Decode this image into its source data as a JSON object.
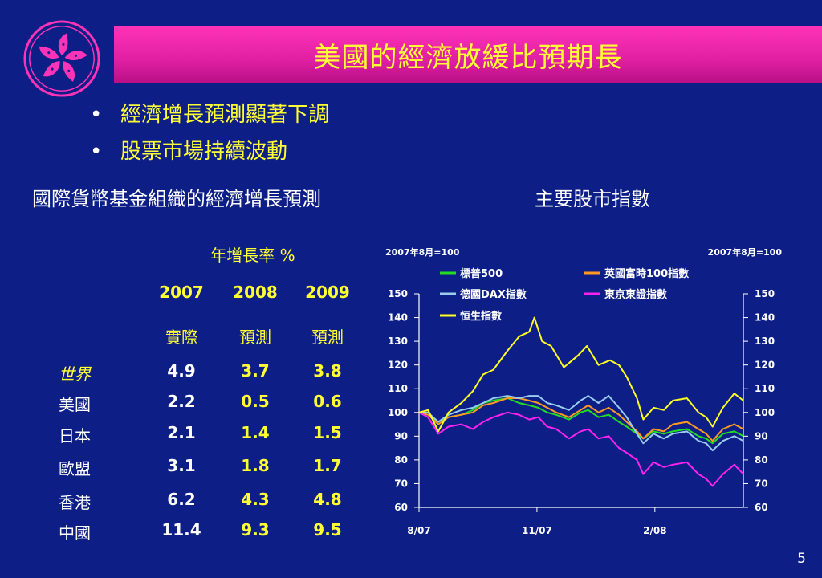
{
  "title": "美國的經濟放緩比預期長",
  "bullets": [
    "經濟增長預測顯著下調",
    "股票市場持續波動"
  ],
  "imf_table": {
    "heading": "國際貨幣基金組織的經濟增長預測",
    "unit_label": "年增長率 %",
    "years": [
      "2007",
      "2008",
      "2009"
    ],
    "types": [
      "實際",
      "預測",
      "預測"
    ],
    "rows": [
      {
        "region": "世界",
        "values": [
          "4.9",
          "3.7",
          "3.8"
        ]
      },
      {
        "region": "美國",
        "values": [
          "2.2",
          "0.5",
          "0.6"
        ]
      },
      {
        "region": "日本",
        "values": [
          "2.1",
          "1.4",
          "1.5"
        ]
      },
      {
        "region": "歐盟",
        "values": [
          "3.1",
          "1.8",
          "1.7"
        ]
      },
      {
        "region": "香港",
        "values": [
          "6.2",
          "4.3",
          "4.8"
        ]
      },
      {
        "region": "中國",
        "values": [
          "11.4",
          "9.3",
          "9.5"
        ]
      }
    ]
  },
  "stock_heading": "主要股市指數",
  "page_number": "5",
  "colors": {
    "background": "#0d1f86",
    "title_bar": "#e01fa3",
    "title_text": "#ffff33",
    "sp500": "#22dd22",
    "ftse": "#ff9922",
    "dax": "#99ccee",
    "topix": "#ff22ee",
    "hsi": "#ffff22"
  },
  "chart_data": {
    "type": "line",
    "title": "",
    "ylabel_left": "2007年8月=100",
    "ylabel_right": "2007年8月=100",
    "ylim": [
      60,
      150
    ],
    "yticks": [
      60,
      70,
      80,
      90,
      100,
      110,
      120,
      130,
      140,
      150
    ],
    "x_range": [
      "2007-08-01",
      "2008-04-10"
    ],
    "x_ticks": [
      {
        "date": "2007-08-01",
        "label": "8/07"
      },
      {
        "date": "2007-11-01",
        "label": "11/07"
      },
      {
        "date": "2008-02-01",
        "label": "2/08"
      }
    ],
    "legend_position": "top",
    "series": [
      {
        "key": "sp500",
        "name": "標普500",
        "color": "#22dd22",
        "points": [
          [
            "2007-08-01",
            100
          ],
          [
            "2007-08-08",
            99
          ],
          [
            "2007-08-16",
            96
          ],
          [
            "2007-08-24",
            98
          ],
          [
            "2007-09-03",
            99
          ],
          [
            "2007-09-12",
            101
          ],
          [
            "2007-09-20",
            104
          ],
          [
            "2007-09-28",
            105
          ],
          [
            "2007-10-09",
            106
          ],
          [
            "2007-10-18",
            104
          ],
          [
            "2007-10-26",
            103
          ],
          [
            "2007-11-02",
            102
          ],
          [
            "2007-11-09",
            100
          ],
          [
            "2007-11-16",
            99
          ],
          [
            "2007-11-26",
            97
          ],
          [
            "2007-12-05",
            100
          ],
          [
            "2007-12-11",
            101
          ],
          [
            "2007-12-19",
            98
          ],
          [
            "2007-12-27",
            99
          ],
          [
            "2008-01-04",
            96
          ],
          [
            "2008-01-10",
            94
          ],
          [
            "2008-01-18",
            91
          ],
          [
            "2008-01-23",
            89
          ],
          [
            "2008-01-31",
            92
          ],
          [
            "2008-02-08",
            91
          ],
          [
            "2008-02-15",
            92
          ],
          [
            "2008-02-26",
            93
          ],
          [
            "2008-03-06",
            90
          ],
          [
            "2008-03-12",
            89
          ],
          [
            "2008-03-17",
            87
          ],
          [
            "2008-03-25",
            91
          ],
          [
            "2008-04-03",
            92
          ],
          [
            "2008-04-10",
            90
          ]
        ]
      },
      {
        "key": "ftse",
        "name": "英國富時100指數",
        "color": "#ff9922",
        "points": [
          [
            "2007-08-01",
            100
          ],
          [
            "2007-08-08",
            99
          ],
          [
            "2007-08-16",
            95
          ],
          [
            "2007-08-24",
            98
          ],
          [
            "2007-09-03",
            99
          ],
          [
            "2007-09-12",
            100
          ],
          [
            "2007-09-20",
            103
          ],
          [
            "2007-09-28",
            104
          ],
          [
            "2007-10-09",
            106
          ],
          [
            "2007-10-18",
            106
          ],
          [
            "2007-10-26",
            105
          ],
          [
            "2007-11-02",
            104
          ],
          [
            "2007-11-09",
            102
          ],
          [
            "2007-11-16",
            100
          ],
          [
            "2007-11-26",
            98
          ],
          [
            "2007-12-05",
            101
          ],
          [
            "2007-12-11",
            103
          ],
          [
            "2007-12-19",
            100
          ],
          [
            "2007-12-27",
            102
          ],
          [
            "2008-01-04",
            99
          ],
          [
            "2008-01-10",
            96
          ],
          [
            "2008-01-18",
            92
          ],
          [
            "2008-01-23",
            89
          ],
          [
            "2008-01-31",
            93
          ],
          [
            "2008-02-08",
            92
          ],
          [
            "2008-02-15",
            95
          ],
          [
            "2008-02-26",
            96
          ],
          [
            "2008-03-06",
            93
          ],
          [
            "2008-03-12",
            91
          ],
          [
            "2008-03-17",
            88
          ],
          [
            "2008-03-25",
            93
          ],
          [
            "2008-04-03",
            95
          ],
          [
            "2008-04-10",
            93
          ]
        ]
      },
      {
        "key": "dax",
        "name": "德國DAX指數",
        "color": "#99ccee",
        "points": [
          [
            "2007-08-01",
            100
          ],
          [
            "2007-08-08",
            100
          ],
          [
            "2007-08-16",
            96
          ],
          [
            "2007-08-24",
            99
          ],
          [
            "2007-09-03",
            101
          ],
          [
            "2007-09-12",
            102
          ],
          [
            "2007-09-20",
            104
          ],
          [
            "2007-09-28",
            106
          ],
          [
            "2007-10-09",
            107
          ],
          [
            "2007-10-18",
            106
          ],
          [
            "2007-10-26",
            107
          ],
          [
            "2007-11-02",
            107
          ],
          [
            "2007-11-09",
            104
          ],
          [
            "2007-11-16",
            103
          ],
          [
            "2007-11-26",
            101
          ],
          [
            "2007-12-05",
            105
          ],
          [
            "2007-12-11",
            107
          ],
          [
            "2007-12-19",
            104
          ],
          [
            "2007-12-27",
            107
          ],
          [
            "2008-01-04",
            102
          ],
          [
            "2008-01-10",
            98
          ],
          [
            "2008-01-18",
            91
          ],
          [
            "2008-01-23",
            87
          ],
          [
            "2008-01-31",
            91
          ],
          [
            "2008-02-08",
            89
          ],
          [
            "2008-02-15",
            91
          ],
          [
            "2008-02-26",
            92
          ],
          [
            "2008-03-06",
            88
          ],
          [
            "2008-03-12",
            87
          ],
          [
            "2008-03-17",
            84
          ],
          [
            "2008-03-25",
            88
          ],
          [
            "2008-04-03",
            90
          ],
          [
            "2008-04-10",
            88
          ]
        ]
      },
      {
        "key": "topix",
        "name": "東京東證指數",
        "color": "#ff22ee",
        "points": [
          [
            "2007-08-01",
            100
          ],
          [
            "2007-08-08",
            98
          ],
          [
            "2007-08-16",
            91
          ],
          [
            "2007-08-24",
            94
          ],
          [
            "2007-09-03",
            95
          ],
          [
            "2007-09-12",
            93
          ],
          [
            "2007-09-20",
            96
          ],
          [
            "2007-09-28",
            98
          ],
          [
            "2007-10-09",
            100
          ],
          [
            "2007-10-18",
            99
          ],
          [
            "2007-10-26",
            97
          ],
          [
            "2007-11-02",
            98
          ],
          [
            "2007-11-09",
            94
          ],
          [
            "2007-11-16",
            93
          ],
          [
            "2007-11-26",
            89
          ],
          [
            "2007-12-05",
            92
          ],
          [
            "2007-12-11",
            93
          ],
          [
            "2007-12-19",
            89
          ],
          [
            "2007-12-27",
            90
          ],
          [
            "2008-01-04",
            85
          ],
          [
            "2008-01-10",
            83
          ],
          [
            "2008-01-18",
            80
          ],
          [
            "2008-01-23",
            74
          ],
          [
            "2008-01-31",
            79
          ],
          [
            "2008-02-08",
            77
          ],
          [
            "2008-02-15",
            78
          ],
          [
            "2008-02-26",
            79
          ],
          [
            "2008-03-06",
            74
          ],
          [
            "2008-03-12",
            72
          ],
          [
            "2008-03-17",
            69
          ],
          [
            "2008-03-25",
            74
          ],
          [
            "2008-04-03",
            78
          ],
          [
            "2008-04-10",
            74
          ]
        ]
      },
      {
        "key": "hsi",
        "name": "恒生指數",
        "color": "#ffff22",
        "points": [
          [
            "2007-08-01",
            100
          ],
          [
            "2007-08-08",
            101
          ],
          [
            "2007-08-16",
            92
          ],
          [
            "2007-08-24",
            100
          ],
          [
            "2007-09-03",
            104
          ],
          [
            "2007-09-12",
            109
          ],
          [
            "2007-09-20",
            116
          ],
          [
            "2007-09-28",
            118
          ],
          [
            "2007-10-09",
            126
          ],
          [
            "2007-10-18",
            132
          ],
          [
            "2007-10-26",
            134
          ],
          [
            "2007-10-30",
            140
          ],
          [
            "2007-11-05",
            130
          ],
          [
            "2007-11-12",
            128
          ],
          [
            "2007-11-22",
            119
          ],
          [
            "2007-12-03",
            124
          ],
          [
            "2007-12-10",
            128
          ],
          [
            "2007-12-19",
            120
          ],
          [
            "2007-12-28",
            122
          ],
          [
            "2008-01-04",
            120
          ],
          [
            "2008-01-10",
            115
          ],
          [
            "2008-01-18",
            106
          ],
          [
            "2008-01-23",
            97
          ],
          [
            "2008-01-31",
            102
          ],
          [
            "2008-02-08",
            101
          ],
          [
            "2008-02-15",
            105
          ],
          [
            "2008-02-26",
            106
          ],
          [
            "2008-03-06",
            100
          ],
          [
            "2008-03-12",
            98
          ],
          [
            "2008-03-17",
            94
          ],
          [
            "2008-03-25",
            102
          ],
          [
            "2008-04-03",
            108
          ],
          [
            "2008-04-10",
            105
          ]
        ]
      }
    ]
  }
}
